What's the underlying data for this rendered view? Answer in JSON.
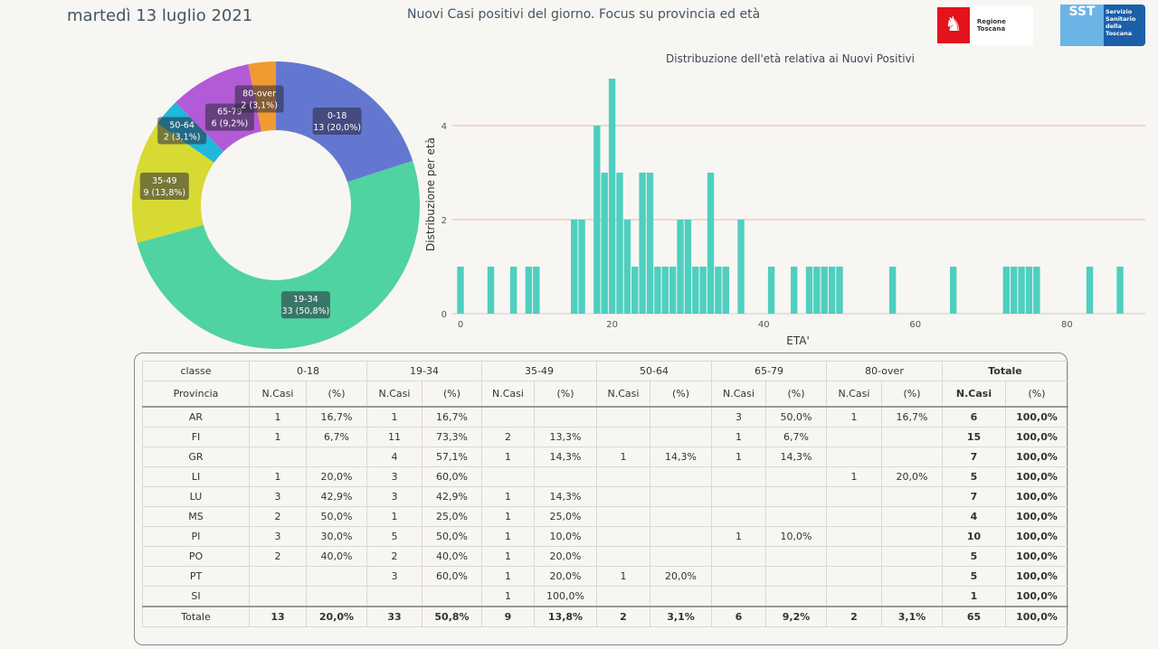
{
  "header": {
    "date": "martedì 13 luglio 2021",
    "title": "Nuovi Casi positivi del giorno. Focus su provincia ed età",
    "logo_regione": "Regione Toscana",
    "logo_sst": "SST",
    "logo_sst_text": "Servizio Sanitario della Toscana"
  },
  "chart_data": [
    {
      "type": "pie",
      "donut": true,
      "slices": [
        {
          "label": "0-18",
          "value": 13,
          "pct": "20,0%",
          "color": "#6477d0"
        },
        {
          "label": "19-34",
          "value": 33,
          "pct": "50,8%",
          "color": "#4fd3a0"
        },
        {
          "label": "35-49",
          "value": 9,
          "pct": "13,8%",
          "color": "#d7da32"
        },
        {
          "label": "50-64",
          "value": 2,
          "pct": "3,1%",
          "color": "#1fb8dc"
        },
        {
          "label": "65-79",
          "value": 6,
          "pct": "9,2%",
          "color": "#b35bd6"
        },
        {
          "label": "80-over",
          "value": 2,
          "pct": "3,1%",
          "color": "#f19a32"
        }
      ]
    },
    {
      "type": "bar",
      "title": "Distribuzione dell'età relativa ai Nuovi Positivi",
      "xlabel": "ETA'",
      "ylabel": "Distribuzione per età",
      "color": "#4ecfbf",
      "xlim": [
        -1,
        89
      ],
      "ylim": [
        0,
        5
      ],
      "xticks": [
        0,
        20,
        40,
        60,
        80
      ],
      "yticks": [
        0,
        2,
        4
      ],
      "grid": true,
      "x": [
        0,
        4,
        7,
        9,
        10,
        15,
        16,
        18,
        19,
        20,
        21,
        22,
        23,
        24,
        25,
        26,
        27,
        28,
        29,
        30,
        31,
        32,
        33,
        34,
        35,
        37,
        41,
        44,
        46,
        47,
        48,
        49,
        50,
        57,
        65,
        72,
        73,
        74,
        75,
        76,
        83,
        87
      ],
      "y": [
        1,
        1,
        1,
        1,
        1,
        2,
        2,
        4,
        3,
        5,
        3,
        2,
        1,
        3,
        3,
        1,
        1,
        1,
        2,
        2,
        1,
        1,
        3,
        1,
        1,
        2,
        1,
        1,
        1,
        1,
        1,
        1,
        1,
        1,
        1,
        1,
        1,
        1,
        1,
        1,
        1,
        1
      ]
    }
  ],
  "table": {
    "corner1": "classe",
    "corner2": "Provincia",
    "classes": [
      "0-18",
      "19-34",
      "35-49",
      "50-64",
      "65-79",
      "80-over",
      "Totale"
    ],
    "sub": [
      "N.Casi",
      "(%)"
    ],
    "rows": [
      [
        "AR",
        "1",
        "16,7%",
        "1",
        "16,7%",
        "",
        "",
        "",
        "",
        "3",
        "50,0%",
        "1",
        "16,7%",
        "6",
        "100,0%"
      ],
      [
        "FI",
        "1",
        "6,7%",
        "11",
        "73,3%",
        "2",
        "13,3%",
        "",
        "",
        "1",
        "6,7%",
        "",
        "",
        "15",
        "100,0%"
      ],
      [
        "GR",
        "",
        "",
        "4",
        "57,1%",
        "1",
        "14,3%",
        "1",
        "14,3%",
        "1",
        "14,3%",
        "",
        "",
        "7",
        "100,0%"
      ],
      [
        "LI",
        "1",
        "20,0%",
        "3",
        "60,0%",
        "",
        "",
        "",
        "",
        "",
        "",
        "1",
        "20,0%",
        "5",
        "100,0%"
      ],
      [
        "LU",
        "3",
        "42,9%",
        "3",
        "42,9%",
        "1",
        "14,3%",
        "",
        "",
        "",
        "",
        "",
        "",
        "7",
        "100,0%"
      ],
      [
        "MS",
        "2",
        "50,0%",
        "1",
        "25,0%",
        "1",
        "25,0%",
        "",
        "",
        "",
        "",
        "",
        "",
        "4",
        "100,0%"
      ],
      [
        "PI",
        "3",
        "30,0%",
        "5",
        "50,0%",
        "1",
        "10,0%",
        "",
        "",
        "1",
        "10,0%",
        "",
        "",
        "10",
        "100,0%"
      ],
      [
        "PO",
        "2",
        "40,0%",
        "2",
        "40,0%",
        "1",
        "20,0%",
        "",
        "",
        "",
        "",
        "",
        "",
        "5",
        "100,0%"
      ],
      [
        "PT",
        "",
        "",
        "3",
        "60,0%",
        "1",
        "20,0%",
        "1",
        "20,0%",
        "",
        "",
        "",
        "",
        "5",
        "100,0%"
      ],
      [
        "SI",
        "",
        "",
        "",
        "",
        "1",
        "100,0%",
        "",
        "",
        "",
        "",
        "",
        "",
        "1",
        "100,0%"
      ]
    ],
    "total": [
      "Totale",
      "13",
      "20,0%",
      "33",
      "50,8%",
      "9",
      "13,8%",
      "2",
      "3,1%",
      "6",
      "9,2%",
      "2",
      "3,1%",
      "65",
      "100,0%"
    ]
  }
}
